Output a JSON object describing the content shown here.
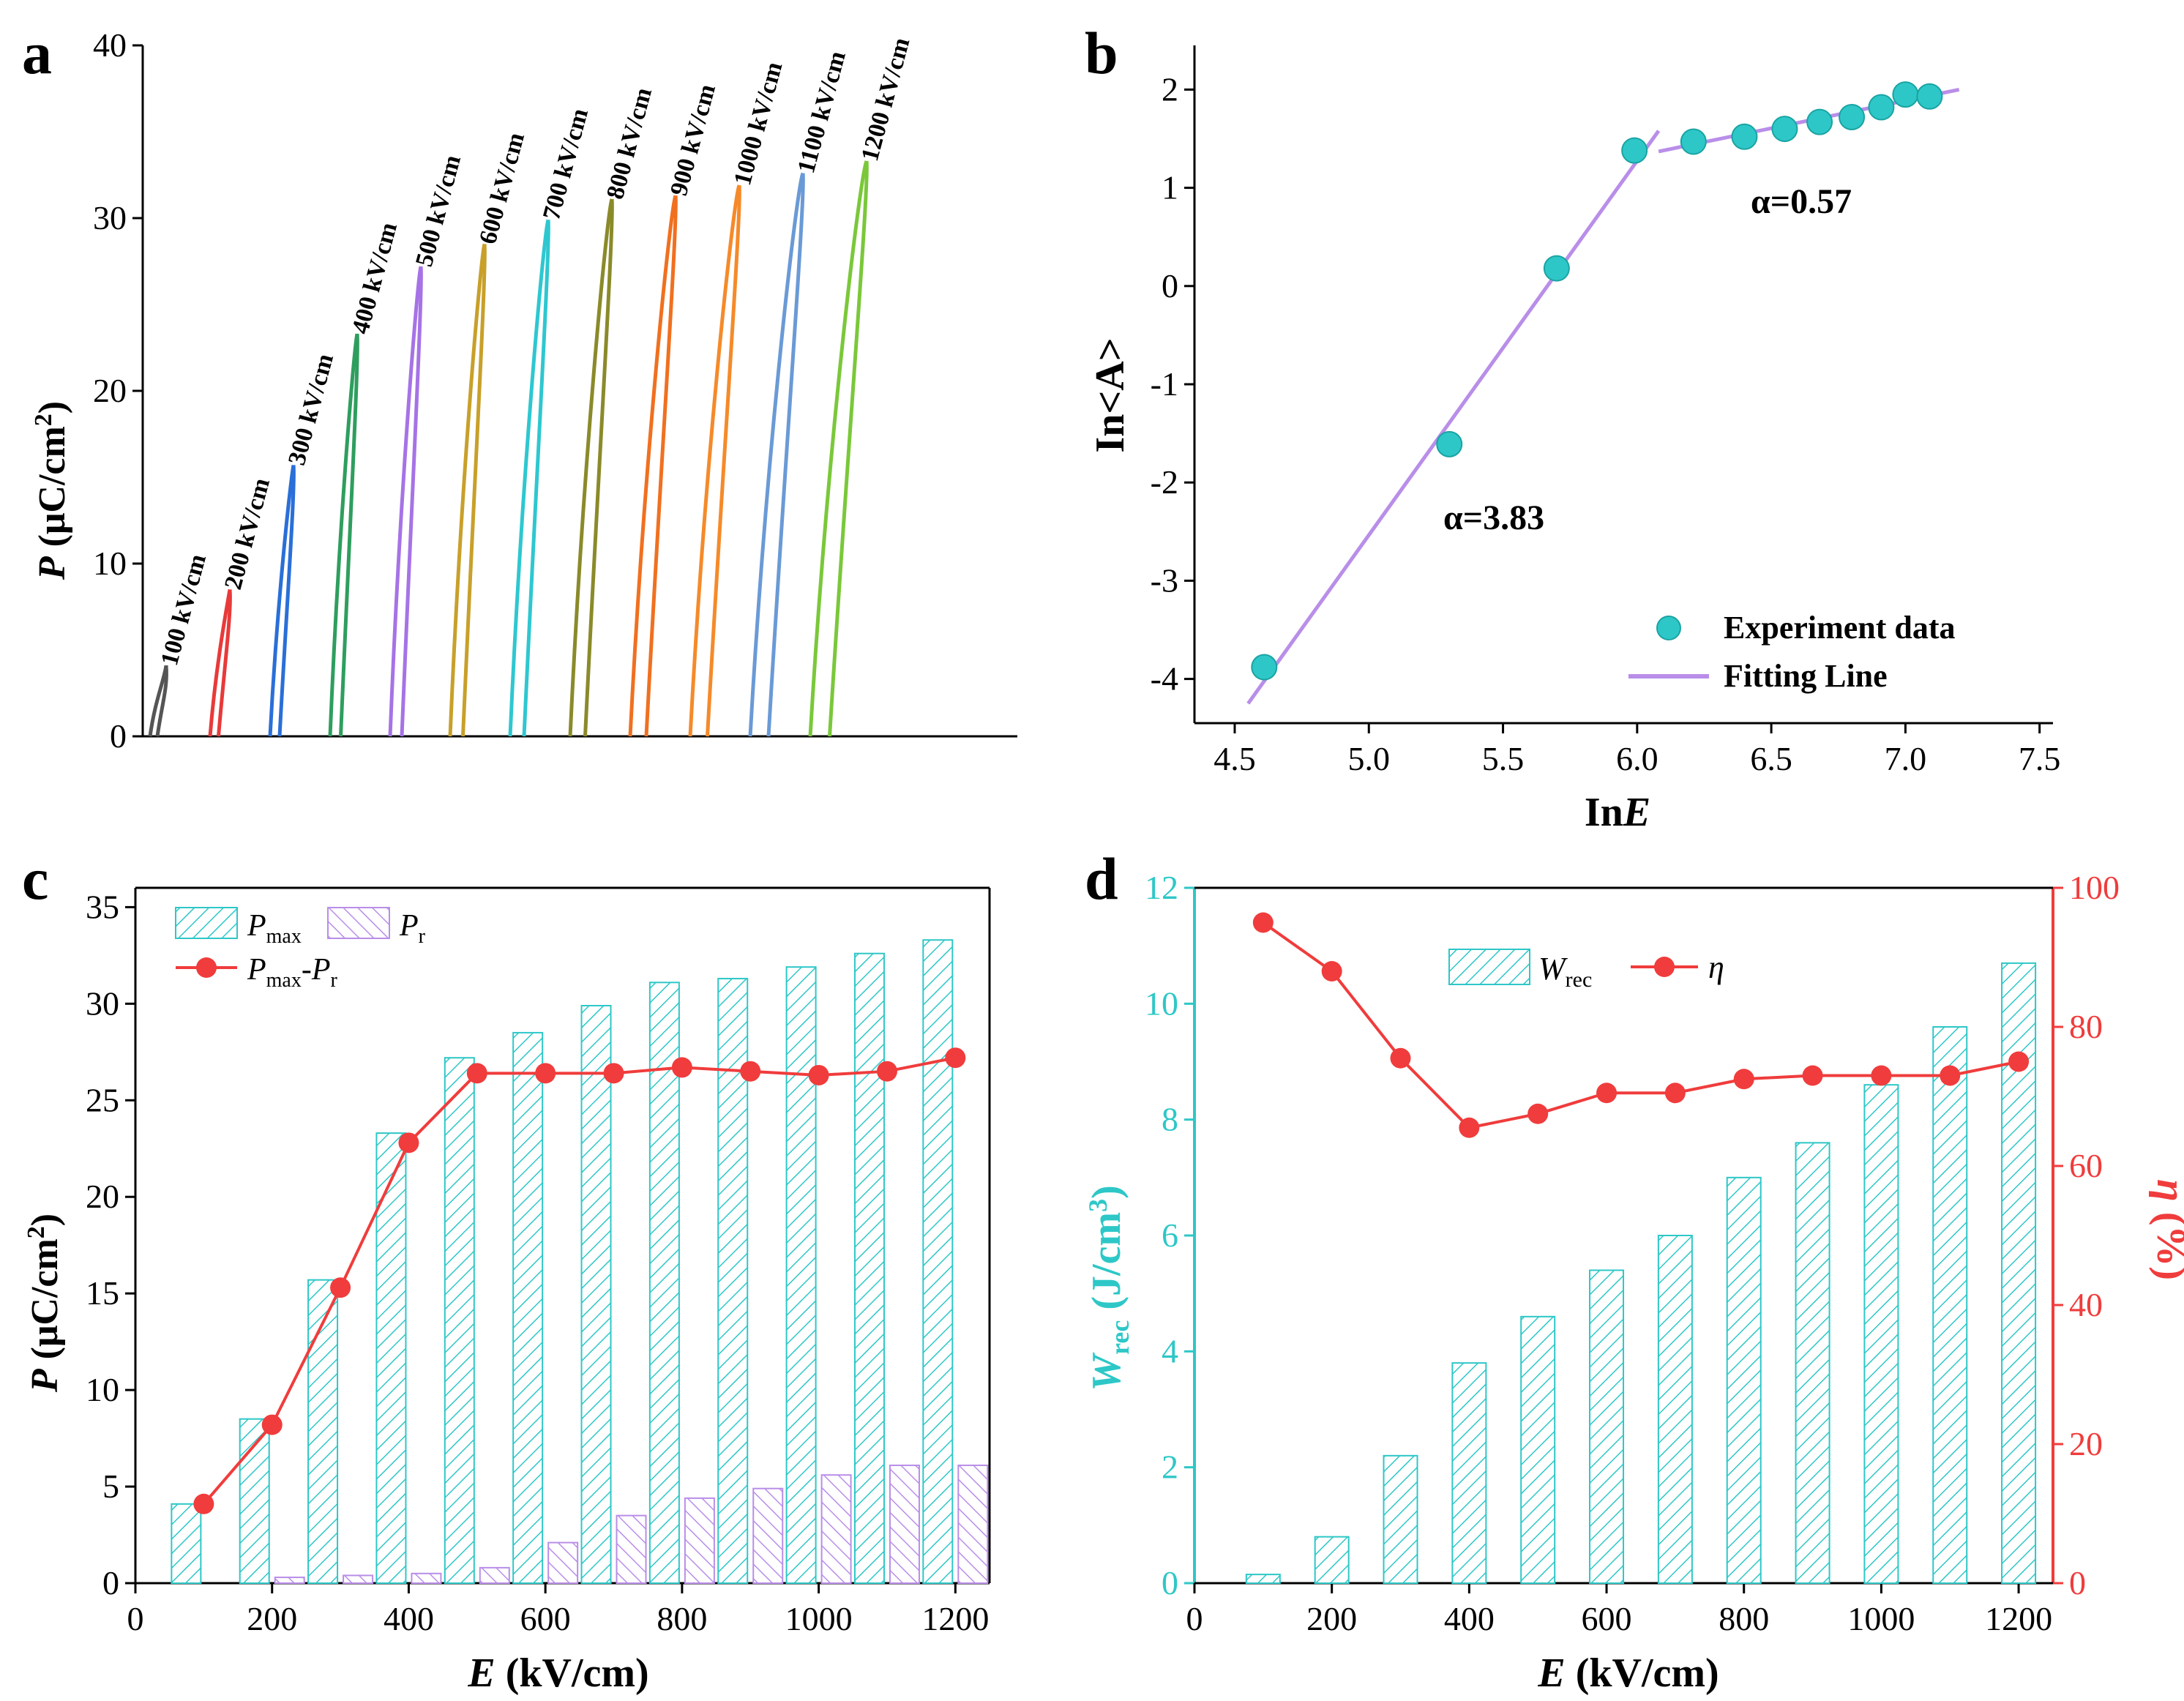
{
  "colors": {
    "axis": "#000000",
    "teal": "#2ec7c7",
    "violet": "#b98ee8",
    "red": "#f03c3c",
    "loops": [
      "#555555",
      "#e83a3a",
      "#2a6fd8",
      "#2e9e5e",
      "#a673e6",
      "#c8a02a",
      "#2ec7d0",
      "#8a8a2a",
      "#f07020",
      "#f58a2a",
      "#6a9ad6",
      "#7ac83a",
      "#3aaa3a",
      "#7a4a3a"
    ]
  },
  "chart_data": [
    {
      "panel": "a",
      "type": "line",
      "ylabel_italic": "P",
      "ylabel_unit": "(μC/cm",
      "ylabel_sup": "2",
      "ylabel_close": ")",
      "ylim": [
        0,
        40
      ],
      "yticks": [
        "0",
        "10",
        "20",
        "30",
        "40"
      ],
      "series": [
        {
          "name": "100 kV/cm",
          "pmax": 4.1
        },
        {
          "name": "200 kV/cm",
          "pmax": 8.5
        },
        {
          "name": "300 kV/cm",
          "pmax": 15.7
        },
        {
          "name": "400 kV/cm",
          "pmax": 23.3
        },
        {
          "name": "500 kV/cm",
          "pmax": 27.2
        },
        {
          "name": "600 kV/cm",
          "pmax": 28.5
        },
        {
          "name": "700 kV/cm",
          "pmax": 29.9
        },
        {
          "name": "800 kV/cm",
          "pmax": 31.1
        },
        {
          "name": "900 kV/cm",
          "pmax": 31.3
        },
        {
          "name": "1000 kV/cm",
          "pmax": 31.9
        },
        {
          "name": "1100 kV/cm",
          "pmax": 32.6
        },
        {
          "name": "1200 kV/cm",
          "pmax": 33.3
        }
      ]
    },
    {
      "panel": "b",
      "type": "scatter",
      "xlabel_prefix": "In",
      "xlabel_italic": "E",
      "ylabel": "In<A>",
      "xlim": [
        4.35,
        7.55
      ],
      "ylim": [
        -4.45,
        2.45
      ],
      "xticks": [
        "4.5",
        "5.0",
        "5.5",
        "6.0",
        "6.5",
        "7.0",
        "7.5"
      ],
      "yticks": [
        "-4",
        "-3",
        "-2",
        "-1",
        "0",
        "1",
        "2"
      ],
      "points": [
        [
          4.61,
          -3.88
        ],
        [
          5.3,
          -1.61
        ],
        [
          5.7,
          0.18
        ],
        [
          5.99,
          1.38
        ],
        [
          6.21,
          1.47
        ],
        [
          6.4,
          1.52
        ],
        [
          6.55,
          1.6
        ],
        [
          6.68,
          1.67
        ],
        [
          6.8,
          1.72
        ],
        [
          6.91,
          1.82
        ],
        [
          7.0,
          1.95
        ],
        [
          7.09,
          1.93
        ]
      ],
      "fits": [
        {
          "from": [
            4.55,
            -4.25
          ],
          "to": [
            6.08,
            1.58
          ]
        },
        {
          "from": [
            6.08,
            1.37
          ],
          "to": [
            7.2,
            2.0
          ]
        }
      ],
      "annotations": [
        "α=3.83",
        "α=0.57"
      ],
      "legend": [
        "Experiment data",
        "Fitting Line"
      ]
    },
    {
      "panel": "c",
      "type": "bar",
      "xlabel_italic": "E",
      "xlabel_unit": "(kV/cm)",
      "ylabel_italic": "P",
      "ylabel_unit": "(μC/cm",
      "ylabel_sup": "2",
      "ylabel_close": ")",
      "xlim": [
        0,
        1250
      ],
      "ylim": [
        0,
        36
      ],
      "xticks": [
        "0",
        "200",
        "400",
        "600",
        "800",
        "1000",
        "1200"
      ],
      "yticks": [
        "0",
        "5",
        "10",
        "15",
        "20",
        "25",
        "30",
        "35"
      ],
      "x": [
        100,
        200,
        300,
        400,
        500,
        600,
        700,
        800,
        900,
        1000,
        1100,
        1200
      ],
      "series": [
        {
          "name": "Pmax",
          "values": [
            4.1,
            8.5,
            15.7,
            23.3,
            27.2,
            28.5,
            29.9,
            31.1,
            31.3,
            31.9,
            32.6,
            33.3
          ]
        },
        {
          "name": "Pr",
          "values": [
            0.0,
            0.3,
            0.4,
            0.5,
            0.8,
            2.1,
            3.5,
            4.4,
            4.9,
            5.6,
            6.1,
            6.1
          ]
        },
        {
          "name": "Pmax-Pr",
          "values": [
            4.1,
            8.2,
            15.3,
            22.8,
            26.4,
            26.4,
            26.4,
            26.7,
            26.5,
            26.3,
            26.5,
            27.2
          ]
        }
      ],
      "legend": {
        "pmax": {
          "main": "P",
          "sub": "max"
        },
        "pr": {
          "main": "P",
          "sub": "r"
        },
        "diff": {
          "main": "P",
          "sub": "max",
          "sep": "-",
          "main2": "P",
          "sub2": "r"
        }
      }
    },
    {
      "panel": "d",
      "type": "bar",
      "xlabel_italic": "E",
      "xlabel_unit": "(kV/cm)",
      "ylabel_italic": "W",
      "ylabel_sub": "rec",
      "ylabel_unit": "(J/cm",
      "ylabel_sup": "3",
      "ylabel_close": ")",
      "y2label_italic": "η",
      "y2label_unit": "(%)",
      "xlim": [
        0,
        1250
      ],
      "ylim": [
        0,
        12
      ],
      "y2lim": [
        0,
        100
      ],
      "xticks": [
        "0",
        "200",
        "400",
        "600",
        "800",
        "1000",
        "1200"
      ],
      "yticks": [
        "0",
        "2",
        "4",
        "6",
        "8",
        "10",
        "12"
      ],
      "y2ticks": [
        "0",
        "20",
        "40",
        "60",
        "80",
        "100"
      ],
      "x": [
        100,
        200,
        300,
        400,
        500,
        600,
        700,
        800,
        900,
        1000,
        1100,
        1200
      ],
      "series": [
        {
          "name": "Wrec",
          "values": [
            0.15,
            0.8,
            2.2,
            3.8,
            4.6,
            5.4,
            6.0,
            7.0,
            7.6,
            8.6,
            9.6,
            10.7
          ]
        },
        {
          "name": "η",
          "values": [
            95,
            88,
            75.5,
            65.5,
            67.5,
            70.5,
            70.5,
            72.5,
            73,
            73,
            73,
            75
          ]
        }
      ],
      "legend": {
        "wrec": {
          "main": "W",
          "sub": "rec"
        },
        "eta": "η"
      }
    }
  ],
  "panel_labels": [
    "a",
    "b",
    "c",
    "d"
  ]
}
